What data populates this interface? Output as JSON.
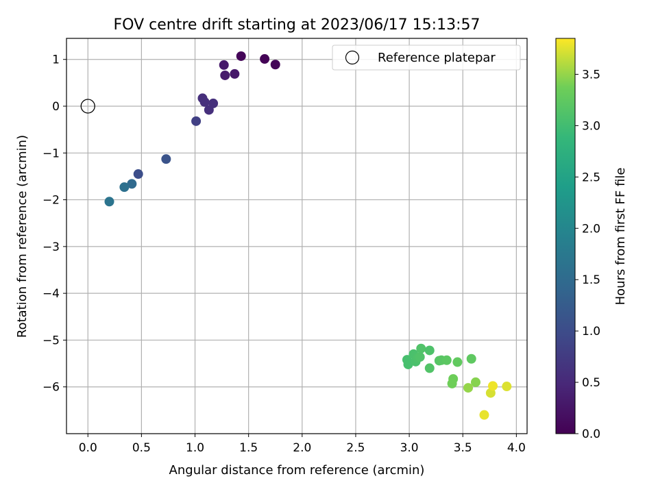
{
  "chart_data": {
    "type": "scatter",
    "title": "FOV centre drift starting at 2023/06/17 15:13:57",
    "xlabel": "Angular distance from reference (arcmin)",
    "ylabel": "Rotation from reference (arcmin)",
    "xlim": [
      -0.2,
      4.1
    ],
    "ylim": [
      -7.0,
      1.45
    ],
    "x_ticks": [
      0.0,
      0.5,
      1.0,
      1.5,
      2.0,
      2.5,
      3.0,
      3.5,
      4.0
    ],
    "x_tick_labels": [
      "0.0",
      "0.5",
      "1.0",
      "1.5",
      "2.0",
      "2.5",
      "3.0",
      "3.5",
      "4.0"
    ],
    "y_ticks": [
      1,
      0,
      -1,
      -2,
      -3,
      -4,
      -5,
      -6
    ],
    "y_tick_labels": [
      "1",
      "0",
      "−1",
      "−2",
      "−3",
      "−4",
      "−5",
      "−6"
    ],
    "grid": true,
    "legend": {
      "placement": "top-right",
      "entries": [
        {
          "label": "Reference platepar",
          "marker": "open-circle",
          "color": "#000000"
        }
      ]
    },
    "reference_point": {
      "x": 0.0,
      "y": 0.0
    },
    "colorbar": {
      "label": "Hours from first FF file",
      "colormap": "viridis",
      "range": [
        0.0,
        3.85
      ],
      "ticks": [
        0.0,
        0.5,
        1.0,
        1.5,
        2.0,
        2.5,
        3.0,
        3.5
      ],
      "tick_labels": [
        "0.0",
        "0.5",
        "1.0",
        "1.5",
        "2.0",
        "2.5",
        "3.0",
        "3.5"
      ]
    },
    "points": [
      {
        "x": 1.43,
        "y": 1.07,
        "c": 0.05
      },
      {
        "x": 1.65,
        "y": 1.01,
        "c": 0.03
      },
      {
        "x": 1.75,
        "y": 0.89,
        "c": 0.05
      },
      {
        "x": 1.27,
        "y": 0.88,
        "c": 0.3
      },
      {
        "x": 1.28,
        "y": 0.66,
        "c": 0.32
      },
      {
        "x": 1.37,
        "y": 0.69,
        "c": 0.3
      },
      {
        "x": 1.07,
        "y": 0.17,
        "c": 0.58
      },
      {
        "x": 1.09,
        "y": 0.09,
        "c": 0.6
      },
      {
        "x": 1.17,
        "y": 0.06,
        "c": 0.6
      },
      {
        "x": 1.13,
        "y": -0.08,
        "c": 0.6
      },
      {
        "x": 1.01,
        "y": -0.32,
        "c": 0.82
      },
      {
        "x": 0.73,
        "y": -1.13,
        "c": 1.1
      },
      {
        "x": 0.47,
        "y": -1.45,
        "c": 1.03
      },
      {
        "x": 0.41,
        "y": -1.66,
        "c": 1.48
      },
      {
        "x": 0.34,
        "y": -1.73,
        "c": 1.6
      },
      {
        "x": 0.2,
        "y": -2.04,
        "c": 1.66
      },
      {
        "x": 2.98,
        "y": -5.42,
        "c": 3.05
      },
      {
        "x": 2.99,
        "y": -5.52,
        "c": 3.05
      },
      {
        "x": 3.04,
        "y": -5.3,
        "c": 3.07
      },
      {
        "x": 3.06,
        "y": -5.46,
        "c": 3.07
      },
      {
        "x": 3.08,
        "y": -5.38,
        "c": 3.1
      },
      {
        "x": 3.1,
        "y": -5.36,
        "c": 3.12
      },
      {
        "x": 3.11,
        "y": -5.18,
        "c": 3.12
      },
      {
        "x": 3.19,
        "y": -5.22,
        "c": 3.1
      },
      {
        "x": 3.19,
        "y": -5.6,
        "c": 3.13
      },
      {
        "x": 3.28,
        "y": -5.44,
        "c": 3.17
      },
      {
        "x": 3.3,
        "y": -5.43,
        "c": 3.19
      },
      {
        "x": 3.35,
        "y": -5.43,
        "c": 3.22
      },
      {
        "x": 3.45,
        "y": -5.47,
        "c": 3.26
      },
      {
        "x": 3.58,
        "y": -5.4,
        "c": 3.24
      },
      {
        "x": 3.41,
        "y": -5.83,
        "c": 3.35
      },
      {
        "x": 3.4,
        "y": -5.93,
        "c": 3.37
      },
      {
        "x": 3.62,
        "y": -5.9,
        "c": 3.45
      },
      {
        "x": 3.55,
        "y": -6.02,
        "c": 3.5
      },
      {
        "x": 3.76,
        "y": -6.13,
        "c": 3.72
      },
      {
        "x": 3.78,
        "y": -5.98,
        "c": 3.8
      },
      {
        "x": 3.91,
        "y": -5.99,
        "c": 3.74
      },
      {
        "x": 3.7,
        "y": -6.6,
        "c": 3.78
      }
    ]
  }
}
